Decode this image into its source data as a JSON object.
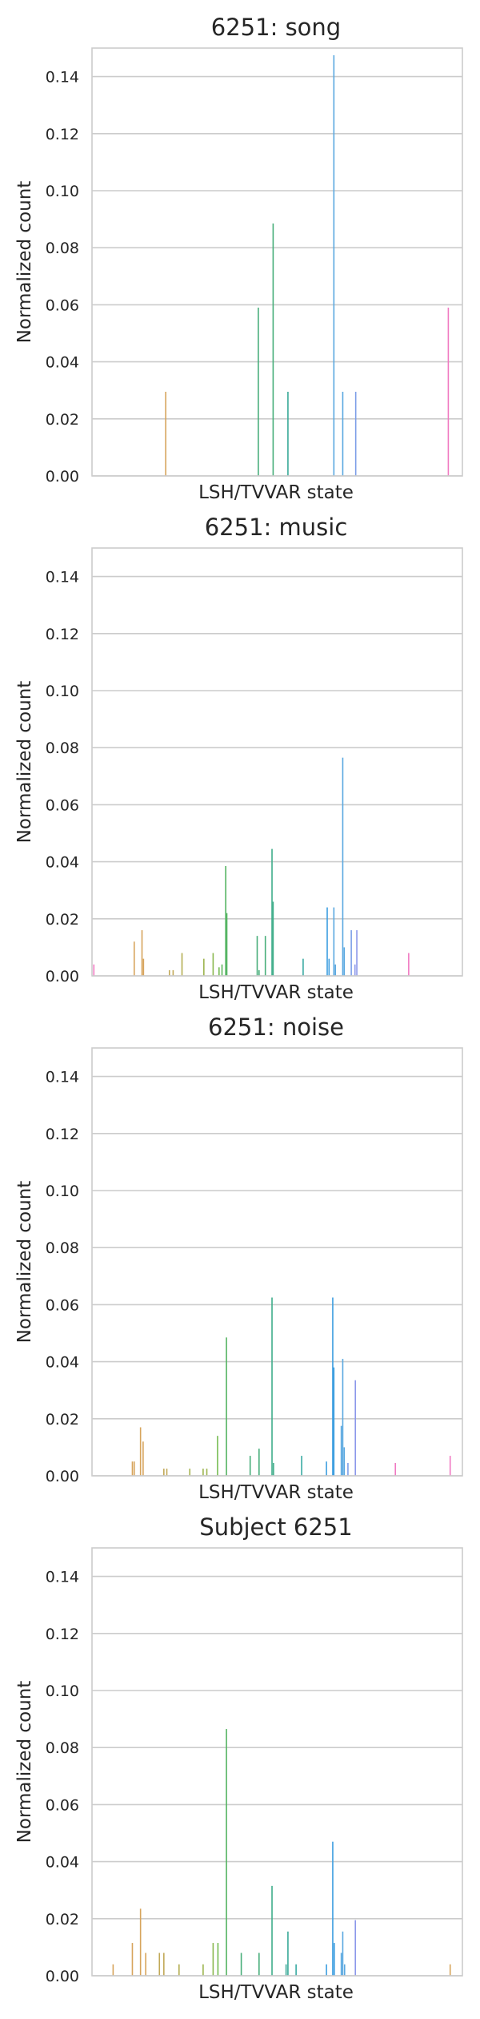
{
  "chart_data": [
    {
      "type": "bar",
      "title": "6251: song",
      "xlabel": "LSH/TVVAR state",
      "ylabel": "Normalized count",
      "ylim": [
        0,
        0.15
      ],
      "yticks": [
        "0.00",
        "0.02",
        "0.04",
        "0.06",
        "0.08",
        "0.10",
        "0.12",
        "0.14"
      ],
      "grid": true,
      "x_range": [
        0,
        100
      ],
      "bars": [
        {
          "x": 19.9,
          "value": 0.0295,
          "color": "#d7a45c"
        },
        {
          "x": 44.9,
          "value": 0.059,
          "color": "#48ae7a"
        },
        {
          "x": 48.9,
          "value": 0.0885,
          "color": "#48ae7a"
        },
        {
          "x": 52.9,
          "value": 0.0295,
          "color": "#3aaa98"
        },
        {
          "x": 65.3,
          "value": 0.1475,
          "color": "#5aa8e0"
        },
        {
          "x": 67.7,
          "value": 0.0295,
          "color": "#5aa8e0"
        },
        {
          "x": 71.2,
          "value": 0.0295,
          "color": "#7c9ee8"
        },
        {
          "x": 96.2,
          "value": 0.059,
          "color": "#f07ac2"
        }
      ]
    },
    {
      "type": "bar",
      "title": "6251: music",
      "xlabel": "LSH/TVVAR state",
      "ylabel": "Normalized count",
      "ylim": [
        0,
        0.15
      ],
      "yticks": [
        "0.00",
        "0.02",
        "0.04",
        "0.06",
        "0.08",
        "0.10",
        "0.12",
        "0.14"
      ],
      "grid": true,
      "x_range": [
        0,
        100
      ],
      "bars": [
        {
          "x": 0.5,
          "value": 0.004,
          "color": "#f07ac2"
        },
        {
          "x": 11.4,
          "value": 0.012,
          "color": "#d7a45c"
        },
        {
          "x": 13.5,
          "value": 0.016,
          "color": "#d7a45c"
        },
        {
          "x": 13.9,
          "value": 0.006,
          "color": "#d7a45c"
        },
        {
          "x": 20.9,
          "value": 0.002,
          "color": "#c2a958"
        },
        {
          "x": 21.9,
          "value": 0.002,
          "color": "#c2a958"
        },
        {
          "x": 24.3,
          "value": 0.008,
          "color": "#b3ad52"
        },
        {
          "x": 30.2,
          "value": 0.006,
          "color": "#9db54e"
        },
        {
          "x": 32.7,
          "value": 0.008,
          "color": "#8bb84f"
        },
        {
          "x": 34.3,
          "value": 0.003,
          "color": "#76bb52"
        },
        {
          "x": 35.1,
          "value": 0.004,
          "color": "#5cb45c"
        },
        {
          "x": 36.1,
          "value": 0.0385,
          "color": "#55b462"
        },
        {
          "x": 36.4,
          "value": 0.022,
          "color": "#55b462"
        },
        {
          "x": 44.6,
          "value": 0.014,
          "color": "#48ae7a"
        },
        {
          "x": 45.1,
          "value": 0.002,
          "color": "#48ae7a"
        },
        {
          "x": 46.8,
          "value": 0.014,
          "color": "#48ae7a"
        },
        {
          "x": 48.6,
          "value": 0.0445,
          "color": "#3fad8a"
        },
        {
          "x": 48.9,
          "value": 0.026,
          "color": "#3fad8a"
        },
        {
          "x": 57.0,
          "value": 0.006,
          "color": "#39aaa2"
        },
        {
          "x": 63.5,
          "value": 0.024,
          "color": "#3d9ee0"
        },
        {
          "x": 64.0,
          "value": 0.006,
          "color": "#3d9ee0"
        },
        {
          "x": 65.3,
          "value": 0.024,
          "color": "#5aa8e0"
        },
        {
          "x": 65.7,
          "value": 0.004,
          "color": "#5aa8e0"
        },
        {
          "x": 67.7,
          "value": 0.0765,
          "color": "#5aa8e0"
        },
        {
          "x": 68.1,
          "value": 0.01,
          "color": "#5aa8e0"
        },
        {
          "x": 70.0,
          "value": 0.016,
          "color": "#7c9ee8"
        },
        {
          "x": 71.0,
          "value": 0.004,
          "color": "#8c98ea"
        },
        {
          "x": 71.5,
          "value": 0.016,
          "color": "#8c98ea"
        },
        {
          "x": 85.5,
          "value": 0.008,
          "color": "#f07ac2"
        }
      ]
    },
    {
      "type": "bar",
      "title": "6251: noise",
      "xlabel": "LSH/TVVAR state",
      "ylabel": "Normalized count",
      "ylim": [
        0,
        0.15
      ],
      "yticks": [
        "0.00",
        "0.02",
        "0.04",
        "0.06",
        "0.08",
        "0.10",
        "0.12",
        "0.14"
      ],
      "grid": true,
      "x_range": [
        0,
        100
      ],
      "bars": [
        {
          "x": 10.9,
          "value": 0.005,
          "color": "#d7a45c"
        },
        {
          "x": 11.4,
          "value": 0.005,
          "color": "#d7a45c"
        },
        {
          "x": 13.1,
          "value": 0.017,
          "color": "#d7a45c"
        },
        {
          "x": 13.8,
          "value": 0.012,
          "color": "#d7a45c"
        },
        {
          "x": 19.4,
          "value": 0.0025,
          "color": "#c2a958"
        },
        {
          "x": 20.2,
          "value": 0.0025,
          "color": "#c2a958"
        },
        {
          "x": 26.4,
          "value": 0.0025,
          "color": "#a5b24e"
        },
        {
          "x": 30.0,
          "value": 0.0025,
          "color": "#9db54e"
        },
        {
          "x": 31.0,
          "value": 0.0025,
          "color": "#9db54e"
        },
        {
          "x": 33.9,
          "value": 0.014,
          "color": "#76bb52"
        },
        {
          "x": 36.3,
          "value": 0.0485,
          "color": "#55b462"
        },
        {
          "x": 42.7,
          "value": 0.007,
          "color": "#48ae7a"
        },
        {
          "x": 45.1,
          "value": 0.0095,
          "color": "#48ae7a"
        },
        {
          "x": 48.6,
          "value": 0.0625,
          "color": "#3fad8a"
        },
        {
          "x": 49.0,
          "value": 0.0045,
          "color": "#3fad8a"
        },
        {
          "x": 56.6,
          "value": 0.007,
          "color": "#39aaa2"
        },
        {
          "x": 63.3,
          "value": 0.005,
          "color": "#3d9ee0"
        },
        {
          "x": 65.0,
          "value": 0.0625,
          "color": "#3d9ee0"
        },
        {
          "x": 65.3,
          "value": 0.038,
          "color": "#3d9ee0"
        },
        {
          "x": 67.3,
          "value": 0.0175,
          "color": "#5aa8e0"
        },
        {
          "x": 67.7,
          "value": 0.041,
          "color": "#5aa8e0"
        },
        {
          "x": 68.1,
          "value": 0.01,
          "color": "#5aa8e0"
        },
        {
          "x": 69.1,
          "value": 0.0045,
          "color": "#7c9ee8"
        },
        {
          "x": 71.1,
          "value": 0.0335,
          "color": "#8c98ea"
        },
        {
          "x": 81.9,
          "value": 0.0045,
          "color": "#f07ac2"
        },
        {
          "x": 96.7,
          "value": 0.007,
          "color": "#f07ac2"
        }
      ]
    },
    {
      "type": "bar",
      "title": "Subject 6251",
      "xlabel": "LSH/TVVAR state",
      "ylabel": "Normalized count",
      "ylim": [
        0,
        0.15
      ],
      "yticks": [
        "0.00",
        "0.02",
        "0.04",
        "0.06",
        "0.08",
        "0.10",
        "0.12",
        "0.14"
      ],
      "grid": true,
      "x_range": [
        0,
        100
      ],
      "bars": [
        {
          "x": 5.7,
          "value": 0.004,
          "color": "#d7a45c"
        },
        {
          "x": 10.9,
          "value": 0.0115,
          "color": "#d7a45c"
        },
        {
          "x": 13.1,
          "value": 0.0235,
          "color": "#d7a45c"
        },
        {
          "x": 14.5,
          "value": 0.008,
          "color": "#d7a45c"
        },
        {
          "x": 18.2,
          "value": 0.008,
          "color": "#c2a958"
        },
        {
          "x": 19.4,
          "value": 0.008,
          "color": "#c2a958"
        },
        {
          "x": 23.5,
          "value": 0.004,
          "color": "#b3ad52"
        },
        {
          "x": 30.0,
          "value": 0.004,
          "color": "#9db54e"
        },
        {
          "x": 32.7,
          "value": 0.0115,
          "color": "#8bb84f"
        },
        {
          "x": 34.0,
          "value": 0.0115,
          "color": "#76bb52"
        },
        {
          "x": 36.3,
          "value": 0.0865,
          "color": "#55b462"
        },
        {
          "x": 40.3,
          "value": 0.008,
          "color": "#48ae7a"
        },
        {
          "x": 45.1,
          "value": 0.008,
          "color": "#48ae7a"
        },
        {
          "x": 48.6,
          "value": 0.0315,
          "color": "#3fad8a"
        },
        {
          "x": 52.4,
          "value": 0.004,
          "color": "#3aaa98"
        },
        {
          "x": 52.9,
          "value": 0.0155,
          "color": "#3aaa98"
        },
        {
          "x": 55.1,
          "value": 0.004,
          "color": "#39aaa2"
        },
        {
          "x": 63.3,
          "value": 0.004,
          "color": "#3d9ee0"
        },
        {
          "x": 65.0,
          "value": 0.047,
          "color": "#3d9ee0"
        },
        {
          "x": 65.4,
          "value": 0.0115,
          "color": "#3d9ee0"
        },
        {
          "x": 67.3,
          "value": 0.008,
          "color": "#5aa8e0"
        },
        {
          "x": 67.7,
          "value": 0.0155,
          "color": "#5aa8e0"
        },
        {
          "x": 68.2,
          "value": 0.004,
          "color": "#5aa8e0"
        },
        {
          "x": 71.1,
          "value": 0.0195,
          "color": "#8c98ea"
        },
        {
          "x": 96.7,
          "value": 0.004,
          "color": "#d7a45c"
        }
      ]
    }
  ]
}
